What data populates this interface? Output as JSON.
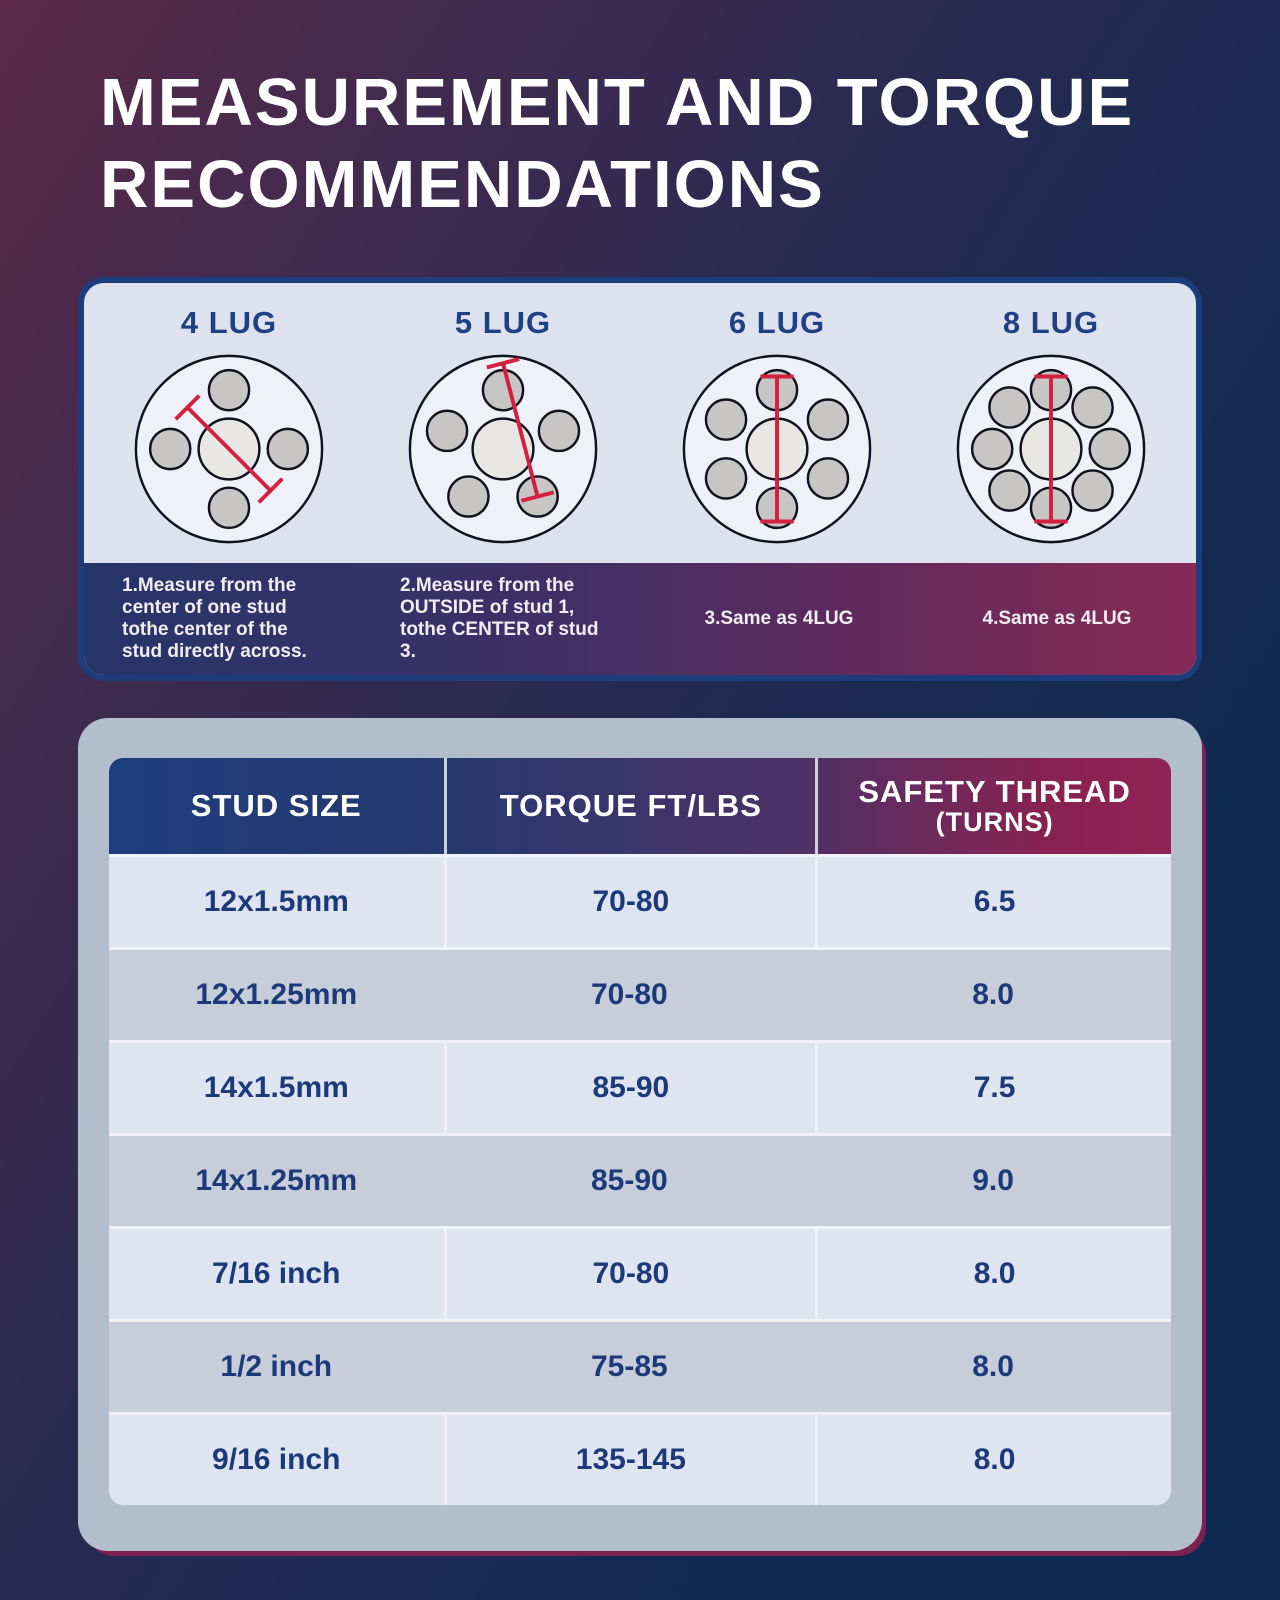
{
  "title": {
    "line1": "MEASUREMENT AND TORQUE",
    "line2": "RECOMMENDATIONS"
  },
  "lug_panel": {
    "diagrams": [
      {
        "label": "4 LUG",
        "studs": 4,
        "caption": "1.Measure from the center of one stud tothe center of the stud directly across."
      },
      {
        "label": "5 LUG",
        "studs": 5,
        "caption": "2.Measure from the OUTSIDE of stud 1, tothe CENTER of stud 3."
      },
      {
        "label": "6 LUG",
        "studs": 6,
        "caption": "3.Same as 4LUG"
      },
      {
        "label": "8 LUG",
        "studs": 8,
        "caption": "4.Same as 4LUG"
      }
    ]
  },
  "table": {
    "header": {
      "stud_size": "STUD SIZE",
      "torque": "TORQUE FT/LBS",
      "safety_line1": "SAFETY THREAD",
      "safety_line2": "(TURNS)"
    },
    "rows": [
      {
        "stud_size": "12x1.5mm",
        "torque": "70-80",
        "safety_thread": "6.5"
      },
      {
        "stud_size": "12x1.25mm",
        "torque": "70-80",
        "safety_thread": "8.0"
      },
      {
        "stud_size": "14x1.5mm",
        "torque": "85-90",
        "safety_thread": "7.5"
      },
      {
        "stud_size": "14x1.25mm",
        "torque": "85-90",
        "safety_thread": "9.0"
      },
      {
        "stud_size": "7/16 inch",
        "torque": "70-80",
        "safety_thread": "8.0"
      },
      {
        "stud_size": "1/2 inch",
        "torque": "75-85",
        "safety_thread": "8.0"
      },
      {
        "stud_size": "9/16 inch",
        "torque": "135-145",
        "safety_thread": "8.0"
      }
    ]
  },
  "colors": {
    "background_top_left": "#5a2948",
    "background_bottom": "#0e2950",
    "panel_border_blue": "#1d3c7b",
    "lug_panel_bg": "#dde2ee",
    "lug_label_blue": "#1e4186",
    "measure_line_red": "#d41f3f",
    "strip_gradient_left": "#263569",
    "strip_gradient_right": "#872a55",
    "table_panel_bg": "#b3becd",
    "header_gradient_left": "#1e3d7c",
    "header_gradient_right": "#8f2355",
    "row_light": "#dfe5f0",
    "row_dark": "#c7ceda",
    "cell_text": "#1c3a7a"
  },
  "chart_data": {
    "type": "table",
    "title": "MEASUREMENT AND TORQUE RECOMMENDATIONS",
    "columns": [
      "STUD SIZE",
      "TORQUE FT/LBS",
      "SAFETY THREAD (TURNS)"
    ],
    "rows": [
      [
        "12x1.5mm",
        "70-80",
        "6.5"
      ],
      [
        "12x1.25mm",
        "70-80",
        "8.0"
      ],
      [
        "14x1.5mm",
        "85-90",
        "7.5"
      ],
      [
        "14x1.25mm",
        "85-90",
        "9.0"
      ],
      [
        "7/16 inch",
        "70-80",
        "8.0"
      ],
      [
        "1/2 inch",
        "75-85",
        "8.0"
      ],
      [
        "9/16 inch",
        "135-145",
        "8.0"
      ]
    ]
  }
}
